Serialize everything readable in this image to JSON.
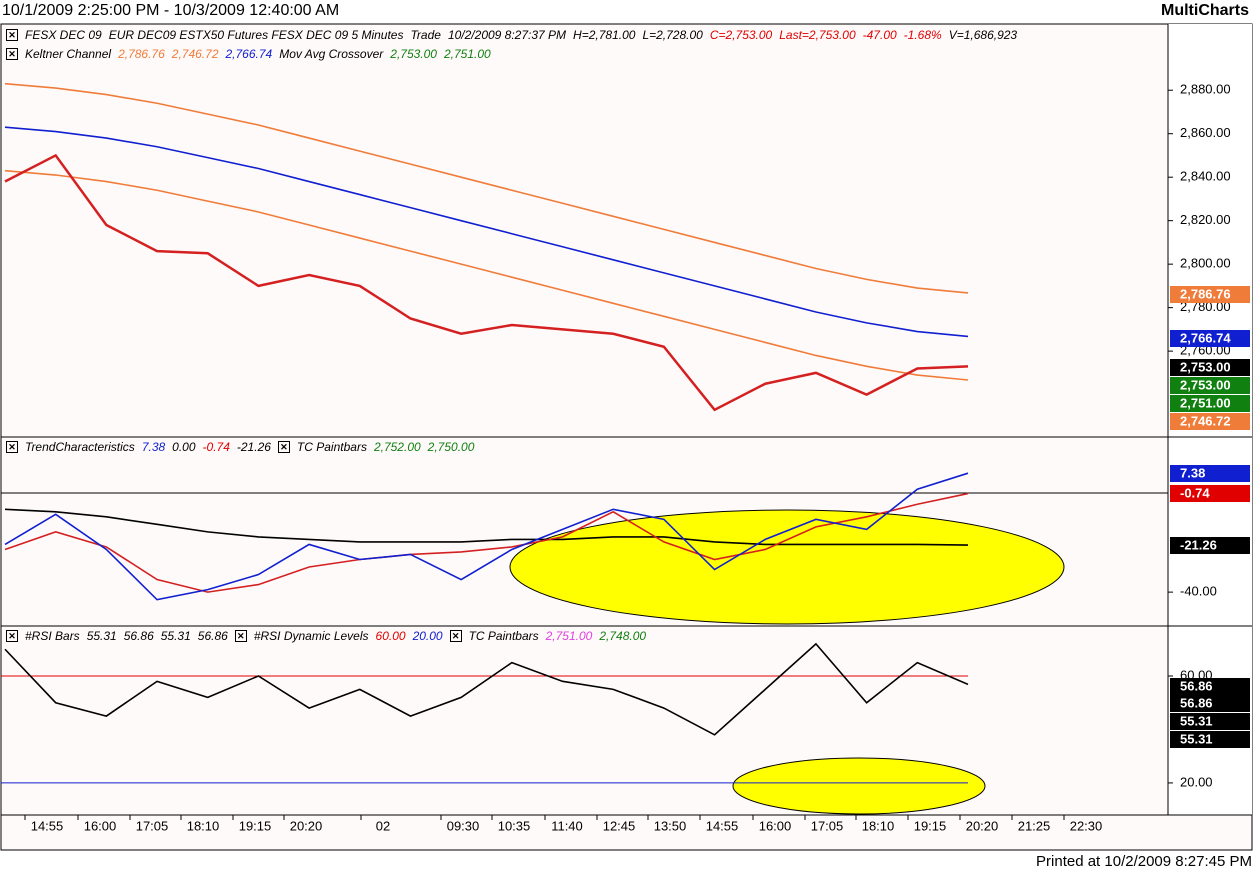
{
  "header": {
    "range": "10/1/2009 2:25:00 PM - 10/3/2009 12:40:00 AM",
    "brand": "MultiCharts"
  },
  "footer": "Printed at 10/2/2009 8:27:45 PM",
  "time_axis": [
    "14:55",
    "16:00",
    "17:05",
    "18:10",
    "19:15",
    "20:20",
    "02",
    "09:30",
    "10:35",
    "11:40",
    "12:45",
    "13:50",
    "14:55",
    "16:00",
    "17:05",
    "18:10",
    "19:15",
    "20:20",
    "21:25",
    "22:30"
  ],
  "chart_data": [
    {
      "type": "line",
      "legend": [
        [
          {
            "text": "FESX DEC 09",
            "color": "#000000"
          },
          {
            "text": "EUR DEC09 ESTX50 Futures FESX DEC 09  5 Minutes",
            "color": "#000000"
          },
          {
            "text": "Trade",
            "color": "#000000"
          },
          {
            "text": "10/2/2009 8:27:37 PM",
            "color": "#000000"
          },
          {
            "text": "H=2,781.00",
            "color": "#000000"
          },
          {
            "text": "L=2,728.00",
            "color": "#000000"
          },
          {
            "text": "C=2,753.00",
            "color": "#e00000"
          },
          {
            "text": "Last=2,753.00",
            "color": "#e00000"
          },
          {
            "text": "-47.00",
            "color": "#e00000"
          },
          {
            "text": "-1.68%",
            "color": "#e00000"
          },
          {
            "text": "V=1,686,923",
            "color": "#000000"
          }
        ],
        [
          {
            "text": "Keltner Channel",
            "color": "#000000"
          },
          {
            "text": "2,786.76",
            "color": "#f07c3a"
          },
          {
            "text": "2,746.72",
            "color": "#f07c3a"
          },
          {
            "text": "2,766.74",
            "color": "#1020d0"
          },
          {
            "text": "Mov Avg Crossover",
            "color": "#000000"
          },
          {
            "text": "2,753.00",
            "color": "#108010"
          },
          {
            "text": "2,751.00",
            "color": "#108010"
          }
        ]
      ],
      "ylim": [
        2720.5,
        2910
      ],
      "yticks": [
        {
          "value": 2880,
          "label": "2,880.00"
        },
        {
          "value": 2860,
          "label": "2,860.00"
        },
        {
          "value": 2840,
          "label": "2,840.00"
        },
        {
          "value": 2820,
          "label": "2,820.00"
        },
        {
          "value": 2800,
          "label": "2,800.00"
        },
        {
          "value": 2780,
          "label": "2,780.00"
        },
        {
          "value": 2760,
          "label": "2,760.00"
        }
      ],
      "series": [
        {
          "color": "#f07c3a",
          "values": [
            2883,
            2881,
            2878,
            2874,
            2869,
            2864,
            2858,
            2852,
            2846,
            2840,
            2834,
            2828,
            2822,
            2816,
            2810,
            2804,
            2798,
            2793,
            2789,
            2786.76
          ]
        },
        {
          "color": "#1020d0",
          "values": [
            2863,
            2861,
            2858,
            2854,
            2849,
            2844,
            2838,
            2832,
            2826,
            2820,
            2814,
            2808,
            2802,
            2796,
            2790,
            2784,
            2778,
            2773,
            2769,
            2766.74
          ]
        },
        {
          "color": "#f07c3a",
          "values": [
            2843,
            2841,
            2838,
            2834,
            2829,
            2824,
            2818,
            2812,
            2806,
            2800,
            2794,
            2788,
            2782,
            2776,
            2770,
            2764,
            2758,
            2753,
            2749,
            2746.72
          ]
        },
        {
          "color": "#d42020",
          "values": [
            2838,
            2850,
            2818,
            2806,
            2805,
            2790,
            2795,
            2790,
            2775,
            2768,
            2772,
            2770,
            2768,
            2762,
            2733,
            2745,
            2750,
            2740,
            2752,
            2753
          ]
        }
      ],
      "badges": [
        {
          "label": "2,786.76",
          "color": "#f07c3a"
        },
        {
          "label": "2,766.74",
          "color": "#1020d0"
        },
        {
          "label": "2,753.00",
          "color": "#000000"
        },
        {
          "label": "2,753.00",
          "color": "#108010"
        },
        {
          "label": "2,751.00",
          "color": "#108010"
        },
        {
          "label": "2,746.72",
          "color": "#f07c3a"
        }
      ]
    },
    {
      "type": "line",
      "legend": [
        [
          {
            "text": "TrendCharacteristics",
            "color": "#000000"
          },
          {
            "text": "7.38",
            "color": "#1020d0"
          },
          {
            "text": "0.00",
            "color": "#000000"
          },
          {
            "text": "-0.74",
            "color": "#e00000"
          },
          {
            "text": "-21.26",
            "color": "#000000"
          },
          {
            "text": "TC Paintbars",
            "color": "#000000"
          },
          {
            "text": "2,752.00",
            "color": "#108010"
          },
          {
            "text": "2,750.00",
            "color": "#108010"
          }
        ]
      ],
      "ylim": [
        -53.5,
        21.8
      ],
      "yticks": [
        {
          "value": -40,
          "label": "-40.00"
        }
      ],
      "series": [
        {
          "color": "#000000",
          "values": [
            -7,
            -8,
            -10,
            -13,
            -16,
            -18,
            -19,
            -20,
            -20,
            -20,
            -19,
            -19,
            -18,
            -18,
            -20,
            -21,
            -21,
            -21,
            -21,
            -21.26
          ]
        },
        {
          "color": "#d42020",
          "values": [
            -23,
            -16,
            -22,
            -35,
            -40,
            -37,
            -30,
            -27,
            -25,
            -24,
            -22,
            -18,
            -8,
            -20,
            -27,
            -23,
            -14,
            -10,
            -5,
            -0.74
          ]
        },
        {
          "color": "#1020d0",
          "values": [
            -21,
            -9,
            -23,
            -43,
            -39,
            -33,
            -21,
            -27,
            -25,
            -35,
            -23,
            -15,
            -7,
            -11,
            -31,
            -19,
            -11,
            -15,
            1,
            7.38
          ]
        }
      ],
      "badges": [
        {
          "label": "7.38",
          "color": "#1020d0"
        },
        {
          "label": "-0.74",
          "color": "#e00000"
        },
        {
          "label": "-21.26",
          "color": "#000000"
        }
      ]
    },
    {
      "type": "line",
      "legend": [
        [
          {
            "text": "#RSI Bars",
            "color": "#000000"
          },
          {
            "text": "55.31",
            "color": "#000000"
          },
          {
            "text": "56.86",
            "color": "#000000"
          },
          {
            "text": "55.31",
            "color": "#000000"
          },
          {
            "text": "56.86",
            "color": "#000000"
          },
          {
            "text": "#RSI Dynamic Levels",
            "color": "#000000"
          },
          {
            "text": "60.00",
            "color": "#e00000"
          },
          {
            "text": "20.00",
            "color": "#1020d0"
          },
          {
            "text": "TC Paintbars",
            "color": "#000000"
          },
          {
            "text": "2,751.00",
            "color": "#e040e0"
          },
          {
            "text": "2,748.00",
            "color": "#108010"
          }
        ]
      ],
      "ylim": [
        8,
        78.7
      ],
      "yticks": [
        {
          "value": 60,
          "label": "60.00"
        },
        {
          "value": 20,
          "label": "20.00"
        }
      ],
      "levels": [
        {
          "value": 60,
          "color": "#e00000"
        },
        {
          "value": 20,
          "color": "#1020d0"
        }
      ],
      "series": [
        {
          "color": "#000000",
          "values": [
            70,
            50,
            45,
            58,
            52,
            60,
            48,
            55,
            45,
            52,
            65,
            58,
            55,
            48,
            38,
            55,
            72,
            50,
            65,
            56.86
          ]
        }
      ],
      "badges": [
        {
          "label": "56.86",
          "color": "#000000"
        },
        {
          "label": "56.86",
          "color": "#000000"
        },
        {
          "label": "55.31",
          "color": "#000000"
        },
        {
          "label": "55.31",
          "color": "#000000"
        }
      ]
    }
  ]
}
